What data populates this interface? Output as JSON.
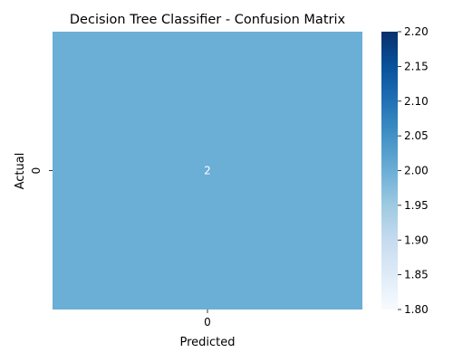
{
  "chart_data": {
    "type": "heatmap",
    "title": "Decision Tree Classifier - Confusion Matrix",
    "xlabel": "Predicted",
    "ylabel": "Actual",
    "x_categories": [
      "0"
    ],
    "y_categories": [
      "0"
    ],
    "values": [
      [
        2
      ]
    ],
    "cell_labels": [
      [
        "2"
      ]
    ],
    "colormap": "Blues",
    "cell_color": "#6baed6",
    "annotation_color": "#ffffff",
    "colorbar": {
      "range": [
        1.8,
        2.2
      ],
      "ticks": [
        "1.80",
        "1.85",
        "1.90",
        "1.95",
        "2.00",
        "2.05",
        "2.10",
        "2.15",
        "2.20"
      ],
      "colors": [
        "#f7fbff",
        "#deebf7",
        "#c6dbef",
        "#9ecae1",
        "#6baed6",
        "#4292c6",
        "#2171b5",
        "#08519c",
        "#08306b"
      ]
    }
  }
}
